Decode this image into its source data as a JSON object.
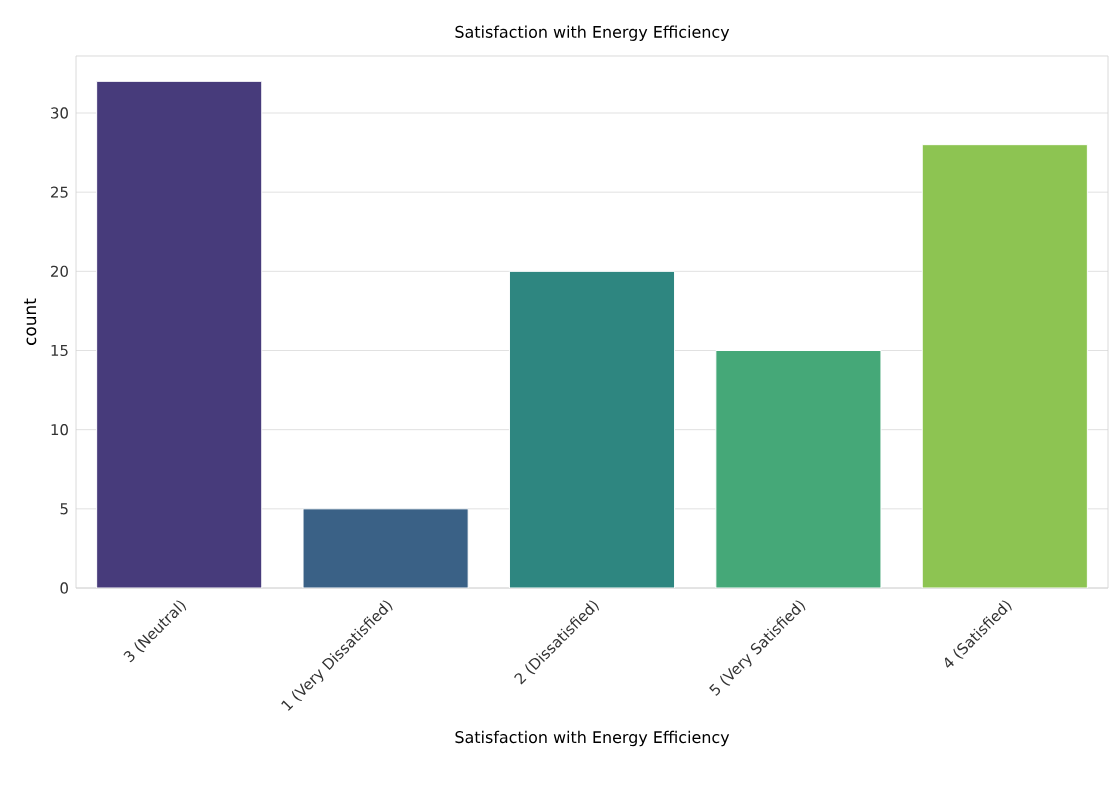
{
  "chart_data": {
    "type": "bar",
    "title": "Satisfaction with Energy Efficiency",
    "xlabel": "Satisfaction with Energy Efficiency",
    "ylabel": "count",
    "categories": [
      "3 (Neutral)",
      "1 (Very Dissatisfied)",
      "2 (Dissatisfied)",
      "5 (Very Satisfied)",
      "4 (Satisfied)"
    ],
    "values": [
      32,
      5,
      20,
      15,
      28
    ],
    "colors": [
      "#473b7b",
      "#3a6186",
      "#2e8680",
      "#45a878",
      "#8dc452"
    ],
    "ylim": [
      0,
      33.6
    ],
    "yticks": [
      0,
      5,
      10,
      15,
      20,
      25,
      30
    ],
    "grid": "y"
  }
}
